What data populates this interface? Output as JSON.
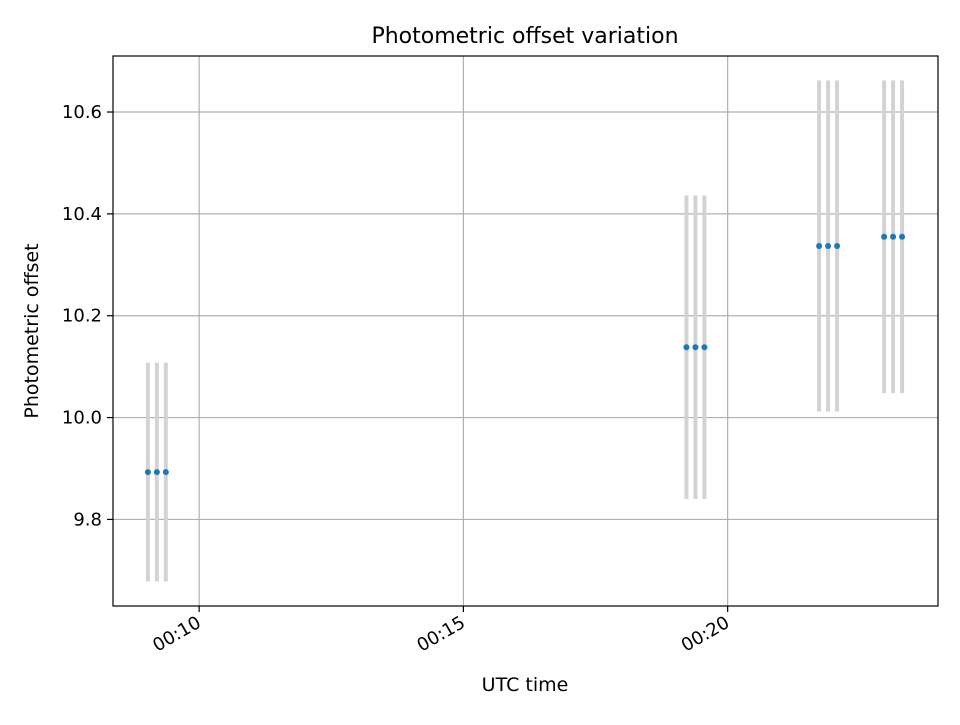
{
  "chart_data": {
    "type": "scatter",
    "title": "Photometric offset variation",
    "xlabel": "UTC time",
    "ylabel": "Photometric offset",
    "x_unit": "minutes",
    "xlim": [
      "00:08.37",
      "00:23.98"
    ],
    "ylim": [
      9.63,
      10.71
    ],
    "x_ticks": [
      {
        "value": 10,
        "label": "00:10"
      },
      {
        "value": 15,
        "label": "00:15"
      },
      {
        "value": 20,
        "label": "00:20"
      }
    ],
    "y_ticks": [
      {
        "value": 9.8,
        "label": "9.8"
      },
      {
        "value": 10.0,
        "label": "10.0"
      },
      {
        "value": 10.2,
        "label": "10.2"
      },
      {
        "value": 10.4,
        "label": "10.4"
      },
      {
        "value": 10.6,
        "label": "10.6"
      }
    ],
    "grid": true,
    "colors": {
      "point": "#1f77b4",
      "errorbar": "#d3d3d3",
      "grid": "#b0b0b0"
    },
    "points": [
      {
        "x": "00:09.03",
        "y": 9.893,
        "err": 0.215
      },
      {
        "x": "00:09.20",
        "y": 9.893,
        "err": 0.215
      },
      {
        "x": "00:09.37",
        "y": 9.893,
        "err": 0.215
      },
      {
        "x": "00:19.22",
        "y": 10.138,
        "err": 0.298
      },
      {
        "x": "00:19.39",
        "y": 10.138,
        "err": 0.298
      },
      {
        "x": "00:19.56",
        "y": 10.138,
        "err": 0.298
      },
      {
        "x": "00:21.73",
        "y": 10.337,
        "err": 0.325
      },
      {
        "x": "00:21.90",
        "y": 10.337,
        "err": 0.325
      },
      {
        "x": "00:22.07",
        "y": 10.337,
        "err": 0.325
      },
      {
        "x": "00:22.96",
        "y": 10.355,
        "err": 0.307
      },
      {
        "x": "00:23.13",
        "y": 10.355,
        "err": 0.307
      },
      {
        "x": "00:23.30",
        "y": 10.355,
        "err": 0.307
      }
    ]
  }
}
